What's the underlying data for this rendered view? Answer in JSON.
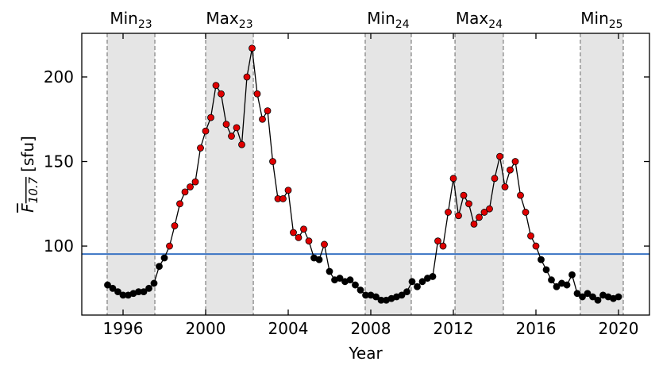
{
  "chart_data": {
    "type": "line",
    "xlabel": "Year",
    "ylabel": {
      "symbol": "F",
      "sub": "10.7",
      "unit": "[sfu]"
    },
    "x": [
      1995.25,
      1995.5,
      1995.75,
      1996.0,
      1996.25,
      1996.5,
      1996.75,
      1997.0,
      1997.25,
      1997.5,
      1997.75,
      1998.0,
      1998.25,
      1998.5,
      1998.75,
      1999.0,
      1999.25,
      1999.5,
      1999.75,
      2000.0,
      2000.25,
      2000.5,
      2000.75,
      2001.0,
      2001.25,
      2001.5,
      2001.75,
      2002.0,
      2002.25,
      2002.5,
      2002.75,
      2003.0,
      2003.25,
      2003.5,
      2003.75,
      2004.0,
      2004.25,
      2004.5,
      2004.75,
      2005.0,
      2005.25,
      2005.5,
      2005.75,
      2006.0,
      2006.25,
      2006.5,
      2006.75,
      2007.0,
      2007.25,
      2007.5,
      2007.75,
      2008.0,
      2008.25,
      2008.5,
      2008.75,
      2009.0,
      2009.25,
      2009.5,
      2009.75,
      2010.0,
      2010.25,
      2010.5,
      2010.75,
      2011.0,
      2011.25,
      2011.5,
      2011.75,
      2012.0,
      2012.25,
      2012.5,
      2012.75,
      2013.0,
      2013.25,
      2013.5,
      2013.75,
      2014.0,
      2014.25,
      2014.5,
      2014.75,
      2015.0,
      2015.25,
      2015.5,
      2015.75,
      2016.0,
      2016.25,
      2016.5,
      2016.75,
      2017.0,
      2017.25,
      2017.5,
      2017.75,
      2018.0,
      2018.25,
      2018.5,
      2018.75,
      2019.0,
      2019.25,
      2019.5,
      2019.75,
      2020.0
    ],
    "values": [
      77,
      75,
      73,
      71,
      71,
      72,
      73,
      73,
      75,
      78,
      88,
      93,
      100,
      112,
      125,
      132,
      135,
      138,
      158,
      168,
      176,
      195,
      190,
      172,
      165,
      170,
      160,
      200,
      217,
      190,
      175,
      180,
      150,
      128,
      128,
      133,
      108,
      105,
      110,
      103,
      93,
      92,
      101,
      85,
      80,
      81,
      79,
      80,
      77,
      74,
      71,
      71,
      70,
      68,
      68,
      69,
      70,
      71,
      73,
      79,
      76,
      79,
      81,
      82,
      103,
      100,
      120,
      140,
      118,
      130,
      125,
      113,
      117,
      120,
      122,
      140,
      153,
      135,
      145,
      150,
      130,
      120,
      106,
      100,
      92,
      86,
      80,
      76,
      78,
      77,
      83,
      72,
      70,
      72,
      70,
      68,
      71,
      70,
      69,
      70
    ],
    "threshold": 95.3,
    "threshold_color": "#3a74c4",
    "above_color": "#e00000",
    "below_color": "#000000",
    "line_color": "#000000",
    "phases": [
      {
        "name": "Min",
        "sub": "23",
        "start": 1995.23,
        "end": 1997.54
      },
      {
        "name": "Max",
        "sub": "23",
        "start": 2000.0,
        "end": 2002.31
      },
      {
        "name": "Min",
        "sub": "24",
        "start": 2007.73,
        "end": 2009.96
      },
      {
        "name": "Max",
        "sub": "24",
        "start": 2012.08,
        "end": 2014.42
      },
      {
        "name": "Min",
        "sub": "25",
        "start": 2018.15,
        "end": 2020.23
      }
    ],
    "phase_color": "#e5e5e5",
    "xlim": [
      1994,
      2021.5
    ],
    "ylim": [
      59.2,
      225.8
    ],
    "xticks": [
      1996,
      2000,
      2004,
      2008,
      2012,
      2016,
      2020
    ],
    "yticks": [
      100,
      150,
      200
    ]
  }
}
